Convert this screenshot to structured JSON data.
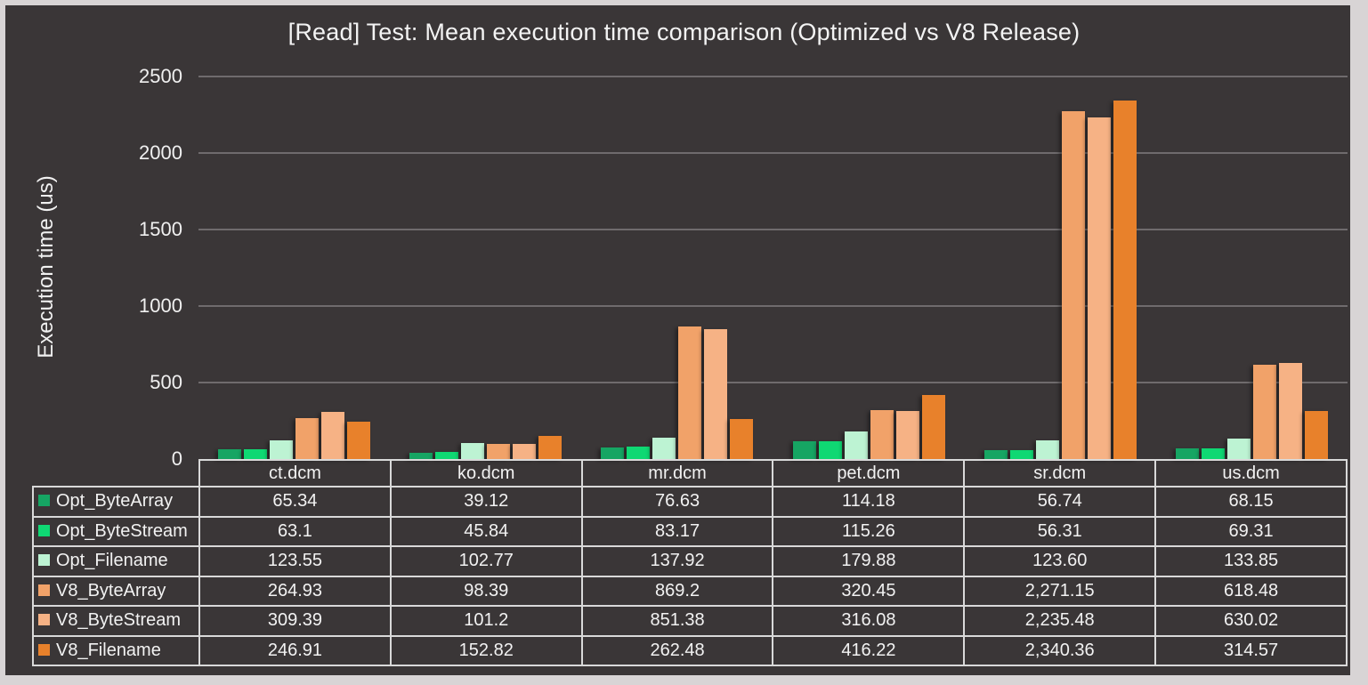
{
  "chart_data": {
    "type": "bar",
    "title": "[Read] Test: Mean execution time comparison (Optimized vs V8 Release)",
    "ylabel": "Execution time (us)",
    "xlabel": "",
    "ylim": [
      0,
      2500
    ],
    "yticks": [
      0,
      500,
      1000,
      1500,
      2000,
      2500
    ],
    "grid": true,
    "legend_position": "table-left",
    "categories": [
      "ct.dcm",
      "ko.dcm",
      "mr.dcm",
      "pet.dcm",
      "sr.dcm",
      "us.dcm"
    ],
    "series": [
      {
        "name": "Opt_ByteArray",
        "color": "#16a563",
        "values": [
          65.34,
          39.12,
          76.63,
          114.18,
          56.74,
          68.15
        ],
        "display_values": [
          "65.34",
          "39.12",
          "76.63",
          "114.18",
          "56.74",
          "68.15"
        ]
      },
      {
        "name": "Opt_ByteStream",
        "color": "#0fd873",
        "values": [
          63.1,
          45.84,
          83.17,
          115.26,
          56.31,
          69.31
        ],
        "display_values": [
          "63.1",
          "45.84",
          "83.17",
          "115.26",
          "56.31",
          "69.31"
        ]
      },
      {
        "name": "Opt_Filename",
        "color": "#bdf3d3",
        "values": [
          123.55,
          102.77,
          137.92,
          179.88,
          123.6,
          133.85
        ],
        "display_values": [
          "123.55",
          "102.77",
          "137.92",
          "179.88",
          "123.60",
          "133.85"
        ]
      },
      {
        "name": "V8_ByteArray",
        "color": "#f1a269",
        "values": [
          264.93,
          98.39,
          869.2,
          320.45,
          2271.15,
          618.48
        ],
        "display_values": [
          "264.93",
          "98.39",
          "869.2",
          "320.45",
          "2,271.15",
          "618.48"
        ]
      },
      {
        "name": "V8_ByteStream",
        "color": "#f6b285",
        "values": [
          309.39,
          101.2,
          851.38,
          316.08,
          2235.48,
          630.02
        ],
        "display_values": [
          "309.39",
          "101.2",
          "851.38",
          "316.08",
          "2,235.48",
          "630.02"
        ]
      },
      {
        "name": "V8_Filename",
        "color": "#e8812b",
        "values": [
          246.91,
          152.82,
          262.48,
          416.22,
          2340.36,
          314.57
        ],
        "display_values": [
          "246.91",
          "152.82",
          "262.48",
          "416.22",
          "2,340.36",
          "314.57"
        ]
      }
    ]
  },
  "theme": {
    "background": "#3a3637",
    "frame": "#d8d4d5",
    "gridline": "#6f6b6d",
    "table_border": "#d9d9d9",
    "text": "#f2f2f2"
  }
}
